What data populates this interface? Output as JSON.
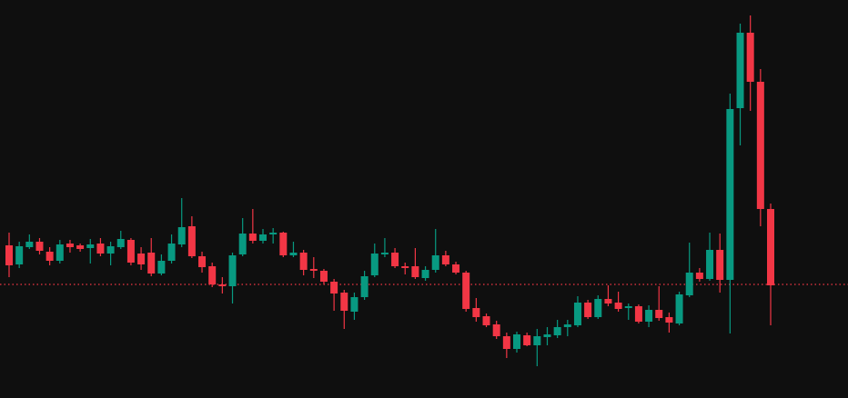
{
  "chart_data": {
    "type": "candlestick",
    "background": "#0f0f0f",
    "up_color": "#089981",
    "down_color": "#f23645",
    "ylim": [
      0,
      438
    ],
    "reference_line": {
      "value": 125,
      "color": "#f23645",
      "style": "dotted"
    },
    "open": [
      168,
      147,
      166,
      172,
      161,
      151,
      170,
      168,
      165,
      170,
      159,
      166,
      174,
      159,
      160,
      137,
      151,
      169,
      189,
      156,
      145,
      125,
      123,
      158,
      181,
      173,
      180,
      182,
      157,
      160,
      142,
      140,
      128,
      116,
      95,
      111,
      135,
      158,
      160,
      145,
      145,
      132,
      141,
      157,
      147,
      138,
      99,
      90,
      81,
      68,
      54,
      69,
      58,
      67,
      69,
      78,
      80,
      105,
      89,
      109,
      105,
      99,
      101,
      84,
      97,
      89,
      82,
      113,
      138,
      131,
      163,
      130,
      319,
      402,
      348,
      208
    ],
    "high": [
      182,
      172,
      180,
      176,
      166,
      174,
      174,
      170,
      175,
      176,
      172,
      184,
      176,
      166,
      176,
      158,
      180,
      220,
      200,
      161,
      149,
      133,
      160,
      198,
      208,
      186,
      187,
      183,
      172,
      163,
      155,
      142,
      131,
      119,
      116,
      140,
      170,
      176,
      165,
      149,
      165,
      145,
      186,
      162,
      150,
      140,
      110,
      93,
      85,
      72,
      73,
      72,
      76,
      78,
      86,
      86,
      112,
      108,
      113,
      124,
      117,
      104,
      103,
      102,
      123,
      94,
      117,
      171,
      143,
      182,
      181,
      335,
      412,
      421,
      362,
      214
    ],
    "low": [
      133,
      143,
      164,
      158,
      146,
      148,
      160,
      161,
      148,
      156,
      146,
      164,
      146,
      141,
      134,
      135,
      148,
      166,
      154,
      138,
      122,
      115,
      104,
      156,
      170,
      170,
      170,
      155,
      155,
      135,
      132,
      125,
      96,
      76,
      86,
      108,
      133,
      155,
      143,
      136,
      131,
      129,
      138,
      145,
      136,
      95,
      84,
      78,
      65,
      44,
      50,
      57,
      35,
      58,
      66,
      68,
      78,
      87,
      87,
      101,
      95,
      86,
      82,
      78,
      85,
      72,
      80,
      111,
      128,
      129,
      116,
      71,
      278,
      316,
      189,
      80
    ],
    "close": [
      146,
      167,
      172,
      162,
      151,
      169,
      166,
      164,
      169,
      159,
      167,
      175,
      149,
      147,
      137,
      151,
      170,
      188,
      156,
      144,
      125,
      123,
      157,
      181,
      173,
      180,
      182,
      157,
      160,
      141,
      140,
      128,
      115,
      96,
      111,
      134,
      159,
      160,
      145,
      143,
      133,
      141,
      157,
      147,
      138,
      98,
      89,
      80,
      68,
      54,
      70,
      58,
      68,
      70,
      78,
      81,
      105,
      89,
      109,
      104,
      98,
      101,
      84,
      97,
      88,
      83,
      114,
      138,
      131,
      163,
      130,
      318,
      402,
      348,
      208,
      124
    ]
  }
}
